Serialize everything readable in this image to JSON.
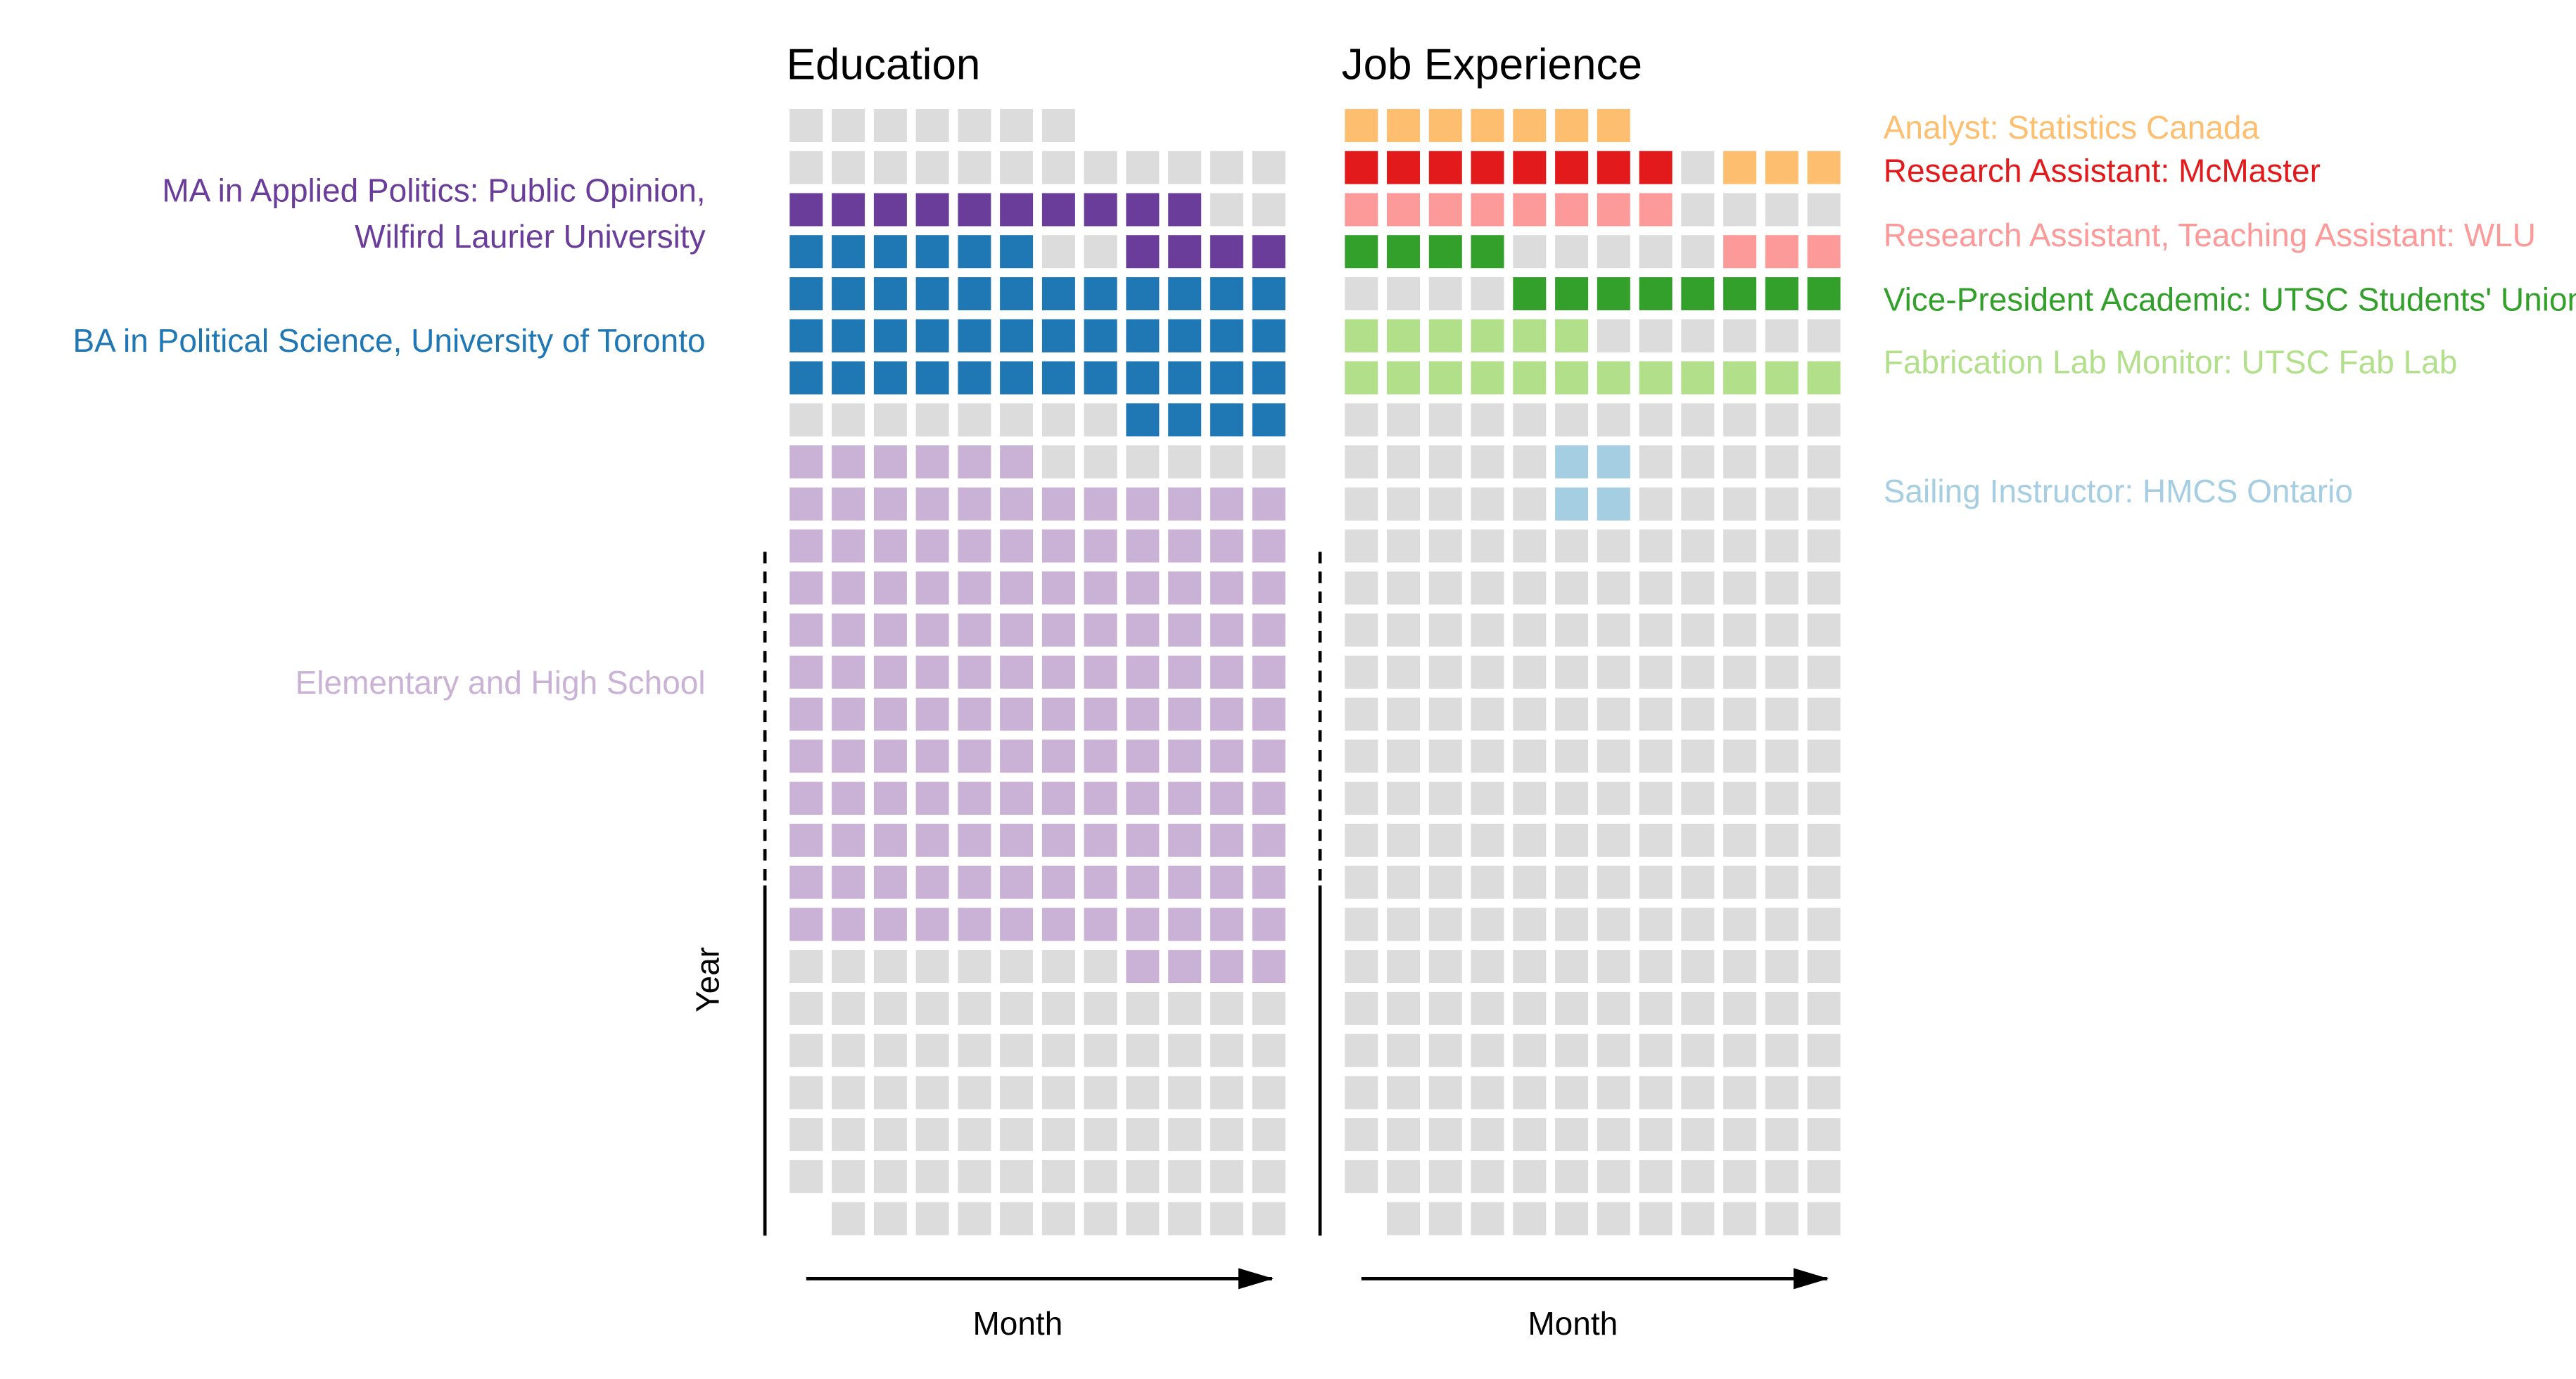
{
  "chart_data": {
    "type": "heatmap",
    "colors": {
      "empty": "#dcdcdc",
      "MA": "#6a3d9a",
      "BA": "#1f78b4",
      "ES": "#cab2d6",
      "AN": "#fdbf6f",
      "RM": "#e31a1c",
      "RW": "#fb9a99",
      "VP": "#33a02c",
      "FL": "#b2df8a",
      "SI": "#a6cee3"
    },
    "panels": [
      {
        "title": "Education",
        "xlabel": "Month",
        "ylabel": "Year",
        "legend": [
          {
            "key": "MA",
            "lines": [
              "MA in Applied Politics: Public Opinion,",
              "Wilfird Laurier University"
            ]
          },
          {
            "key": "BA",
            "lines": [
              "BA in Political Science, University of Toronto"
            ]
          },
          {
            "key": "ES",
            "lines": [
              "Elementary and High School"
            ]
          }
        ],
        "rows": [
          "EEEEEEE",
          "EEEEEEEEEEEE",
          "MMMMMMMMMMEE",
          "BBBBBBEEMMMM",
          "BBBBBBBBBBBB",
          "BBBBBBBBBBBB",
          "BBBBBBBBBBBB",
          "EEEEEEEEBBBB",
          "SSSSSSEEEEEE",
          "SSSSSSSSSSSS",
          "SSSSSSSSSSSS",
          "SSSSSSSSSSSS",
          "SSSSSSSSSSSS",
          "SSSSSSSSSSSS",
          "SSSSSSSSSSSS",
          "SSSSSSSSSSSS",
          "SSSSSSSSSSSS",
          "SSSSSSSSSSSS",
          "SSSSSSSSSSSS",
          "SSSSSSSSSSSS",
          "EEEEEEEESSSS",
          "EEEEEEEEEEEE",
          "EEEEEEEEEEEE",
          "EEEEEEEEEEEE",
          "EEEEEEEEEEEE",
          "EEEEEEEEEEEE",
          "-EEEEEEEEEEE"
        ]
      },
      {
        "title": "Job Experience",
        "xlabel": "Month",
        "ylabel": "",
        "legend": [
          {
            "key": "AN",
            "lines": [
              "Analyst: Statistics Canada"
            ]
          },
          {
            "key": "RM",
            "lines": [
              "Research Assistant: McMaster"
            ]
          },
          {
            "key": "RW",
            "lines": [
              "Research Assistant, Teaching Assistant: WLU"
            ]
          },
          {
            "key": "VP",
            "lines": [
              "Vice-President Academic: UTSC Students' Union"
            ]
          },
          {
            "key": "FL",
            "lines": [
              "Fabrication Lab Monitor: UTSC Fab Lab"
            ]
          },
          {
            "key": "SI",
            "lines": [
              "Sailing Instructor: HMCS Ontario"
            ]
          }
        ],
        "rows": [
          "AAAAAAA",
          "RRRRRRRREAAA",
          "WWWWWWWWEEEE",
          "VVVVEEEEEWWW",
          "EEEEVVVVVVVV",
          "FFFFFFEEEEEE",
          "FFFFFFFFFFFF",
          "EEEEEEEEEEEE",
          "EEEEEIIEEEEE",
          "EEEEEIIEEEEE",
          "EEEEEEEEEEEE",
          "EEEEEEEEEEEE",
          "EEEEEEEEEEEE",
          "EEEEEEEEEEEE",
          "EEEEEEEEEEEE",
          "EEEEEEEEEEEE",
          "EEEEEEEEEEEE",
          "EEEEEEEEEEEE",
          "EEEEEEEEEEEE",
          "EEEEEEEEEEEE",
          "EEEEEEEEEEEE",
          "EEEEEEEEEEEE",
          "EEEEEEEEEEEE",
          "EEEEEEEEEEEE",
          "EEEEEEEEEEEE",
          "EEEEEEEEEEEE",
          "-EEEEEEEEEEE"
        ]
      }
    ],
    "code_map": {
      "E": "empty",
      "M": "MA",
      "B": "BA",
      "S": "ES",
      "A": "AN",
      "R": "RM",
      "W": "RW",
      "V": "VP",
      "F": "FL",
      "I": "SI"
    }
  }
}
